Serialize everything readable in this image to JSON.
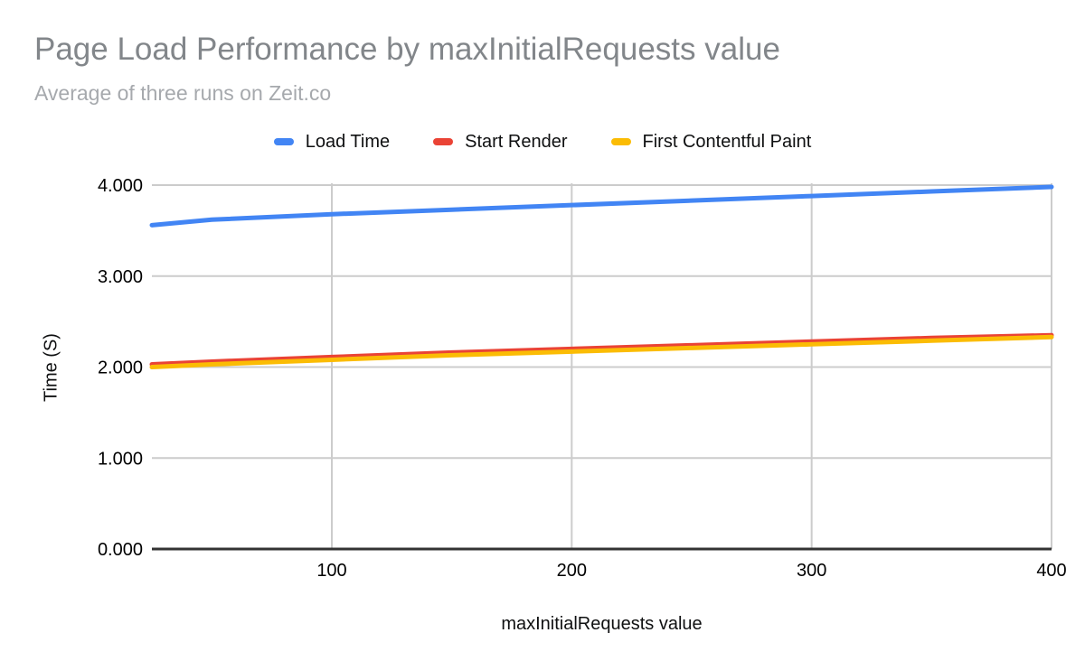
{
  "chart_data": {
    "type": "line",
    "title": "Page Load Performance by maxInitialRequests value",
    "subtitle": "Average of three runs on Zeit.co",
    "xlabel": "maxInitialRequests value",
    "ylabel": "Time (S)",
    "xlim": [
      25,
      400
    ],
    "ylim": [
      0,
      4
    ],
    "x_ticks": [
      100,
      200,
      300,
      400
    ],
    "x_tick_labels": [
      "100",
      "200",
      "300",
      "400"
    ],
    "y_ticks": [
      0,
      1,
      2,
      3,
      4
    ],
    "y_tick_labels": [
      "0.000",
      "1.000",
      "2.000",
      "3.000",
      "4.000"
    ],
    "grid": true,
    "legend_position": "top",
    "x": [
      25,
      50,
      100,
      150,
      200,
      250,
      300,
      350,
      400
    ],
    "series": [
      {
        "name": "Load Time",
        "color": "#4285F4",
        "values": [
          3.56,
          3.62,
          3.68,
          3.73,
          3.78,
          3.83,
          3.88,
          3.93,
          3.98
        ]
      },
      {
        "name": "Start Render",
        "color": "#EA4335",
        "values": [
          2.03,
          2.06,
          2.11,
          2.16,
          2.2,
          2.24,
          2.28,
          2.32,
          2.35
        ]
      },
      {
        "name": "First Contentful Paint",
        "color": "#FBBC04",
        "values": [
          2.0,
          2.03,
          2.08,
          2.13,
          2.17,
          2.21,
          2.25,
          2.29,
          2.33
        ]
      }
    ],
    "colors": {
      "grid": "#cccccc",
      "axis": "#333333",
      "title": "#82868a",
      "subtitle": "#a6a9ad",
      "tick_text": "#000000",
      "background": "#ffffff"
    }
  }
}
